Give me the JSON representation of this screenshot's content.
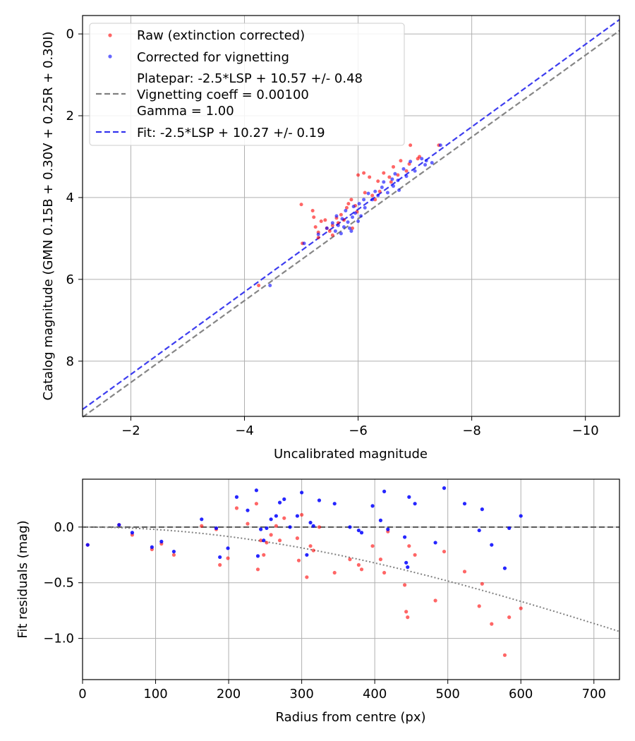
{
  "chart_data": [
    {
      "type": "scatter",
      "title": "",
      "xlabel": "Uncalibrated magnitude",
      "ylabel": "Catalog magnitude (GMN 0.15B + 0.30V + 0.25R + 0.30I)",
      "xlim": [
        -1.15,
        -10.6
      ],
      "ylim": [
        9.35,
        -0.45
      ],
      "y_inverted": true,
      "grid": true,
      "legend_position": "top-left",
      "xticks": [
        -2,
        -4,
        -6,
        -8,
        -10
      ],
      "xtick_labels": [
        "−2",
        "−4",
        "−6",
        "−8",
        "−10"
      ],
      "yticks": [
        0,
        2,
        4,
        6,
        8
      ],
      "ytick_labels": [
        "0",
        "2",
        "4",
        "6",
        "8"
      ],
      "legend": [
        {
          "label": "Raw (extinction corrected)",
          "kind": "marker",
          "color": "#ff0000"
        },
        {
          "label": "Corrected for vignetting",
          "kind": "marker",
          "color": "#0000ff"
        },
        {
          "label_lines": [
            "Platepar: -2.5*LSP + 10.57 +/- 0.48",
            "Vignetting coeff = 0.00100",
            "Gamma = 1.00"
          ],
          "kind": "dashed",
          "color": "#808080"
        },
        {
          "label": "Fit: -2.5*LSP + 10.27 +/- 0.19",
          "kind": "dashed",
          "color": "#3333ee"
        }
      ],
      "lines": [
        {
          "name": "Platepar",
          "x": [
            -1.15,
            -10.6
          ],
          "y": [
            9.37,
            -0.08
          ],
          "color": "#808080",
          "style": "dashed"
        },
        {
          "name": "Fit",
          "x": [
            -1.15,
            -10.6
          ],
          "y": [
            9.18,
            -0.35
          ],
          "color": "#3333ee",
          "style": "dashed"
        }
      ],
      "series": [
        {
          "name": "Raw (extinction corrected)",
          "color": "#ff0000",
          "points": [
            [
              -4.25,
              6.15
            ],
            [
              -5.02,
              5.12
            ],
            [
              -5.0,
              4.17
            ],
            [
              -5.2,
              4.32
            ],
            [
              -5.22,
              4.48
            ],
            [
              -5.25,
              4.72
            ],
            [
              -5.3,
              4.85
            ],
            [
              -5.3,
              4.98
            ],
            [
              -5.35,
              4.58
            ],
            [
              -5.42,
              4.55
            ],
            [
              -5.45,
              4.75
            ],
            [
              -5.5,
              4.82
            ],
            [
              -5.55,
              4.68
            ],
            [
              -5.62,
              4.5
            ],
            [
              -5.7,
              4.42
            ],
            [
              -5.75,
              4.55
            ],
            [
              -5.8,
              4.25
            ],
            [
              -5.83,
              4.15
            ],
            [
              -5.88,
              4.05
            ],
            [
              -5.95,
              4.2
            ],
            [
              -5.98,
              4.35
            ],
            [
              -6.0,
              3.45
            ],
            [
              -6.1,
              3.4
            ],
            [
              -6.12,
              3.88
            ],
            [
              -6.2,
              3.5
            ],
            [
              -6.25,
              3.95
            ],
            [
              -6.3,
              4.05
            ],
            [
              -6.35,
              3.6
            ],
            [
              -6.38,
              3.85
            ],
            [
              -6.45,
              3.4
            ],
            [
              -6.55,
              3.5
            ],
            [
              -6.58,
              3.62
            ],
            [
              -6.62,
              3.25
            ],
            [
              -6.7,
              3.45
            ],
            [
              -6.75,
              3.1
            ],
            [
              -6.85,
              3.35
            ],
            [
              -6.9,
              3.18
            ],
            [
              -6.92,
              2.72
            ],
            [
              -7.05,
              3.05
            ],
            [
              -7.08,
              3.0
            ],
            [
              -7.42,
              2.72
            ],
            [
              -5.55,
              4.92
            ],
            [
              -5.65,
              4.62
            ],
            [
              -5.9,
              4.75
            ]
          ]
        },
        {
          "name": "Corrected for vignetting",
          "color": "#0000ff",
          "points": [
            [
              -4.45,
              6.15
            ],
            [
              -5.05,
              5.12
            ],
            [
              -5.3,
              4.9
            ],
            [
              -5.45,
              4.75
            ],
            [
              -5.55,
              4.62
            ],
            [
              -5.6,
              4.82
            ],
            [
              -5.62,
              4.45
            ],
            [
              -5.65,
              4.68
            ],
            [
              -5.7,
              4.88
            ],
            [
              -5.72,
              4.52
            ],
            [
              -5.75,
              4.72
            ],
            [
              -5.78,
              4.32
            ],
            [
              -5.82,
              4.6
            ],
            [
              -5.85,
              4.75
            ],
            [
              -5.9,
              4.48
            ],
            [
              -5.92,
              4.22
            ],
            [
              -5.95,
              4.38
            ],
            [
              -6.0,
              4.58
            ],
            [
              -6.02,
              4.15
            ],
            [
              -6.05,
              4.45
            ],
            [
              -6.1,
              4.05
            ],
            [
              -6.12,
              4.25
            ],
            [
              -6.18,
              3.9
            ],
            [
              -6.25,
              4.05
            ],
            [
              -6.3,
              3.85
            ],
            [
              -6.35,
              3.95
            ],
            [
              -6.42,
              3.75
            ],
            [
              -6.45,
              3.62
            ],
            [
              -6.52,
              3.88
            ],
            [
              -6.6,
              3.55
            ],
            [
              -6.62,
              3.72
            ],
            [
              -6.65,
              3.42
            ],
            [
              -6.7,
              3.58
            ],
            [
              -6.72,
              3.82
            ],
            [
              -6.8,
              3.3
            ],
            [
              -6.85,
              3.48
            ],
            [
              -6.92,
              3.12
            ],
            [
              -7.0,
              3.35
            ],
            [
              -7.12,
              3.05
            ],
            [
              -7.18,
              3.2
            ],
            [
              -7.2,
              3.1
            ],
            [
              -7.45,
              2.72
            ],
            [
              -7.3,
              3.15
            ],
            [
              -5.88,
              4.82
            ]
          ]
        }
      ]
    },
    {
      "type": "scatter",
      "title": "",
      "xlabel": "Radius from centre (px)",
      "ylabel": "Fit residuals (mag)",
      "xlim": [
        0,
        735
      ],
      "ylim": [
        -1.37,
        0.43
      ],
      "grid": true,
      "xticks": [
        0,
        100,
        200,
        300,
        400,
        500,
        600,
        700
      ],
      "xtick_labels": [
        "0",
        "100",
        "200",
        "300",
        "400",
        "500",
        "600",
        "700"
      ],
      "yticks": [
        0.0,
        -0.5,
        -1.0
      ],
      "ytick_labels": [
        "0.0",
        "−0.5",
        "−1.0"
      ],
      "lines": [
        {
          "name": "zero",
          "x": [
            0,
            735
          ],
          "y": [
            0,
            0
          ],
          "color": "#555555",
          "style": "dashed"
        },
        {
          "name": "vignetting model",
          "function": "-2.5*log10(cos(atan(0.001*r))^4)*-1",
          "x_range": [
            0,
            735
          ],
          "color": "#808080",
          "style": "dotted"
        }
      ],
      "series": [
        {
          "name": "Raw",
          "color": "#ff0000",
          "points": [
            [
              7,
              -0.16
            ],
            [
              50,
              0.02
            ],
            [
              68,
              -0.07
            ],
            [
              95,
              -0.2
            ],
            [
              108,
              -0.15
            ],
            [
              125,
              -0.25
            ],
            [
              163,
              0.01
            ],
            [
              183,
              -0.02
            ],
            [
              188,
              -0.34
            ],
            [
              199,
              -0.28
            ],
            [
              211,
              0.17
            ],
            [
              226,
              0.03
            ],
            [
              238,
              0.21
            ],
            [
              240,
              -0.38
            ],
            [
              244,
              -0.12
            ],
            [
              248,
              -0.25
            ],
            [
              252,
              -0.14
            ],
            [
              258,
              -0.07
            ],
            [
              265,
              0.01
            ],
            [
              270,
              -0.12
            ],
            [
              276,
              0.08
            ],
            [
              294,
              -0.1
            ],
            [
              296,
              -0.3
            ],
            [
              300,
              0.11
            ],
            [
              307,
              -0.45
            ],
            [
              312,
              -0.17
            ],
            [
              316,
              -0.21
            ],
            [
              324,
              0.0
            ],
            [
              345,
              -0.41
            ],
            [
              366,
              -0.29
            ],
            [
              378,
              -0.34
            ],
            [
              382,
              -0.38
            ],
            [
              397,
              -0.17
            ],
            [
              408,
              -0.29
            ],
            [
              413,
              -0.41
            ],
            [
              418,
              -0.04
            ],
            [
              441,
              -0.52
            ],
            [
              443,
              -0.76
            ],
            [
              445,
              -0.81
            ],
            [
              447,
              -0.17
            ],
            [
              455,
              -0.25
            ],
            [
              483,
              -0.66
            ],
            [
              495,
              -0.22
            ],
            [
              523,
              -0.4
            ],
            [
              543,
              -0.71
            ],
            [
              547,
              -0.51
            ],
            [
              560,
              -0.87
            ],
            [
              578,
              -1.15
            ],
            [
              584,
              -0.81
            ],
            [
              600,
              -0.73
            ]
          ]
        },
        {
          "name": "Corrected",
          "color": "#0000ff",
          "points": [
            [
              7,
              -0.16
            ],
            [
              50,
              0.02
            ],
            [
              68,
              -0.05
            ],
            [
              95,
              -0.18
            ],
            [
              108,
              -0.13
            ],
            [
              125,
              -0.22
            ],
            [
              163,
              0.07
            ],
            [
              183,
              -0.01
            ],
            [
              188,
              -0.27
            ],
            [
              199,
              -0.19
            ],
            [
              211,
              0.27
            ],
            [
              226,
              0.15
            ],
            [
              238,
              0.33
            ],
            [
              240,
              -0.26
            ],
            [
              244,
              -0.02
            ],
            [
              248,
              -0.12
            ],
            [
              252,
              -0.01
            ],
            [
              258,
              0.07
            ],
            [
              265,
              0.1
            ],
            [
              270,
              0.22
            ],
            [
              276,
              0.25
            ],
            [
              284,
              0.0
            ],
            [
              294,
              0.1
            ],
            [
              300,
              0.31
            ],
            [
              307,
              -0.25
            ],
            [
              312,
              0.04
            ],
            [
              316,
              0.01
            ],
            [
              324,
              0.24
            ],
            [
              345,
              0.21
            ],
            [
              366,
              0.0
            ],
            [
              378,
              -0.03
            ],
            [
              382,
              -0.05
            ],
            [
              397,
              0.19
            ],
            [
              408,
              0.06
            ],
            [
              413,
              0.32
            ],
            [
              418,
              -0.02
            ],
            [
              441,
              -0.09
            ],
            [
              443,
              -0.32
            ],
            [
              445,
              -0.36
            ],
            [
              447,
              0.27
            ],
            [
              455,
              0.21
            ],
            [
              483,
              -0.14
            ],
            [
              495,
              0.35
            ],
            [
              523,
              0.21
            ],
            [
              543,
              -0.03
            ],
            [
              547,
              0.16
            ],
            [
              560,
              -0.16
            ],
            [
              578,
              -0.37
            ],
            [
              584,
              -0.01
            ],
            [
              600,
              0.1
            ]
          ]
        }
      ]
    }
  ]
}
